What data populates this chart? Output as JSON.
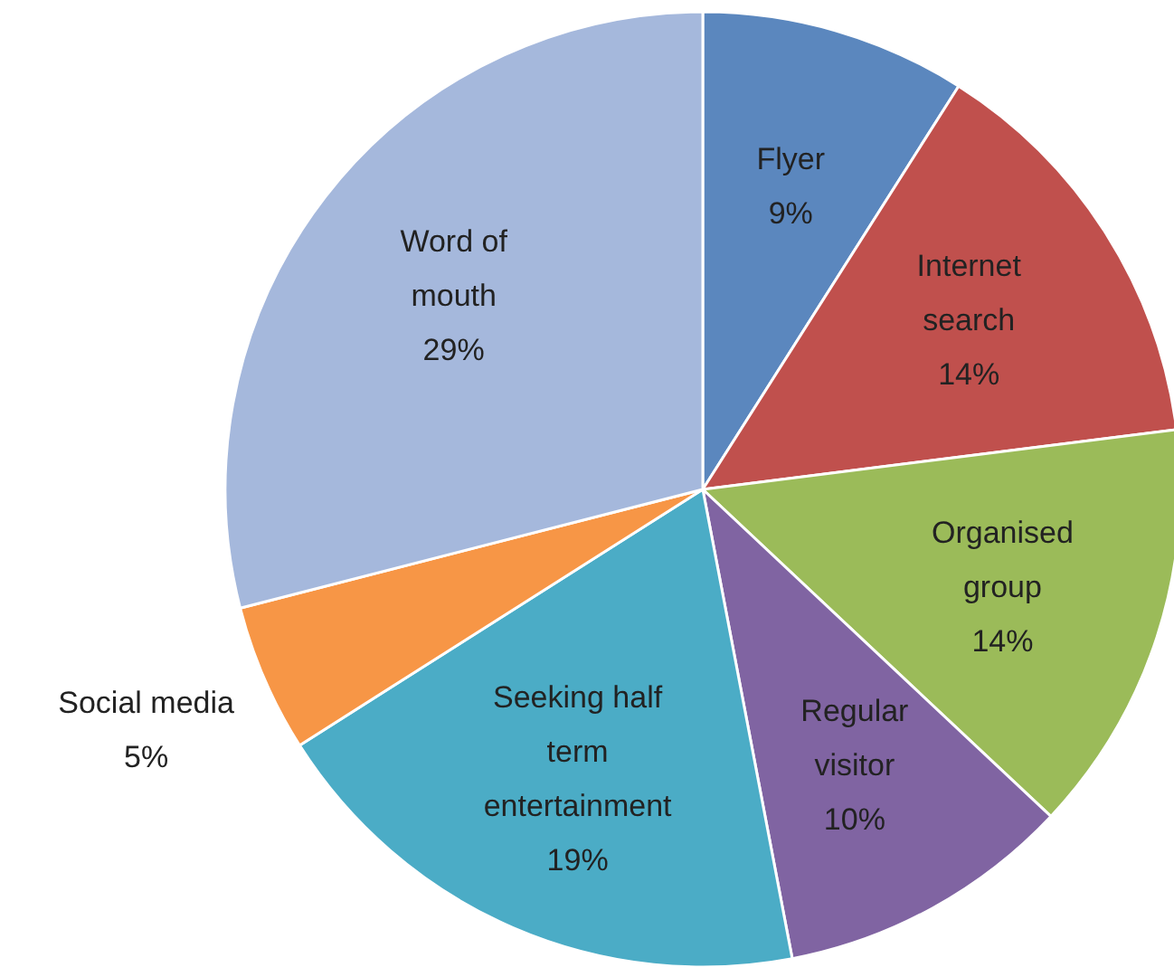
{
  "chart_data": {
    "type": "pie",
    "categories": [
      "Flyer",
      "Internet search",
      "Organised group",
      "Regular visitor",
      "Seeking half term entertainment",
      "Social media",
      "Word of mouth"
    ],
    "values": [
      9,
      14,
      14,
      10,
      19,
      5,
      29
    ],
    "colors": [
      "#5b87be",
      "#c0504d",
      "#9bbb59",
      "#8064a2",
      "#4bacc6",
      "#f79646",
      "#a5b8dc"
    ],
    "value_labels": [
      "9%",
      "14%",
      "14%",
      "10%",
      "19%",
      "5%",
      "29%"
    ]
  }
}
